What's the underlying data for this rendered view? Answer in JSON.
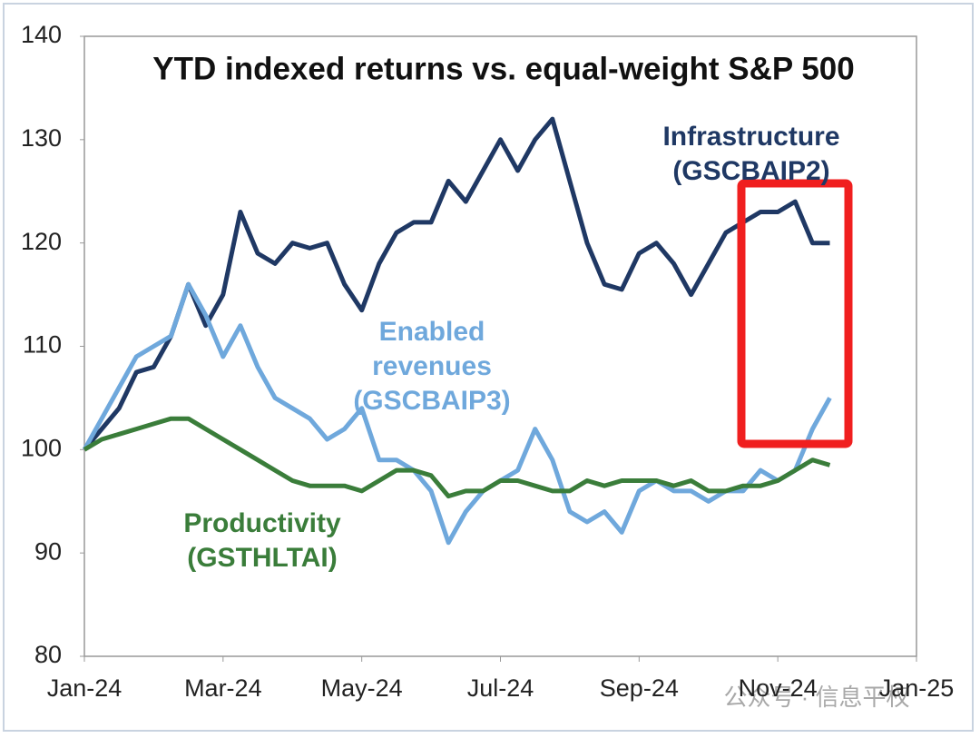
{
  "chart_data": {
    "type": "line",
    "title": "YTD indexed returns vs. equal-weight S&P 500",
    "x": [
      0,
      0.25,
      0.5,
      0.75,
      1,
      1.25,
      1.5,
      1.75,
      2,
      2.25,
      2.5,
      2.75,
      3,
      3.25,
      3.5,
      3.75,
      4,
      4.25,
      4.5,
      4.75,
      5,
      5.25,
      5.5,
      5.75,
      6,
      6.25,
      6.5,
      6.75,
      7,
      7.25,
      7.5,
      7.75,
      8,
      8.25,
      8.5,
      8.75,
      9,
      9.25,
      9.5,
      9.75,
      10,
      10.25,
      10.5,
      10.75
    ],
    "series": [
      {
        "name": "Infrastructure (GSCBAIP2)",
        "color": "#1f3864",
        "values": [
          100,
          102,
          104,
          107.5,
          108,
          111,
          116,
          112,
          115,
          123,
          119,
          118,
          120,
          119.5,
          120,
          116,
          113.5,
          118,
          121,
          122,
          122,
          126,
          124,
          127,
          130,
          127,
          130,
          132,
          126,
          120,
          116,
          115.5,
          119,
          120,
          118,
          115,
          118,
          121,
          122,
          123,
          123,
          124,
          120,
          120
        ]
      },
      {
        "name": "Enabled revenues (GSCBAIP3)",
        "color": "#6fa8dc",
        "values": [
          100,
          103,
          106,
          109,
          110,
          111,
          116,
          113,
          109,
          112,
          108,
          105,
          104,
          103,
          101,
          102,
          104,
          99,
          99,
          98,
          96,
          91,
          94,
          96,
          97,
          98,
          102,
          99,
          94,
          93,
          94,
          92,
          96,
          97,
          96,
          96,
          95,
          96,
          96,
          98,
          97,
          98,
          102,
          105
        ]
      },
      {
        "name": "Productivity (GSTHLTAI)",
        "color": "#3a7d3a",
        "values": [
          100,
          101,
          101.5,
          102,
          102.5,
          103,
          103,
          102,
          101,
          100,
          99,
          98,
          97,
          96.5,
          96.5,
          96.5,
          96,
          97,
          98,
          98,
          97.5,
          95.5,
          96,
          96,
          97,
          97,
          96.5,
          96,
          96,
          97,
          96.5,
          97,
          97,
          97,
          96.5,
          97,
          96,
          96,
          96.5,
          96.5,
          97,
          98,
          99,
          98.5
        ]
      }
    ],
    "xlim": [
      0,
      12
    ],
    "xticks": [
      {
        "value": 0,
        "label": "Jan-24"
      },
      {
        "value": 2,
        "label": "Mar-24"
      },
      {
        "value": 4,
        "label": "May-24"
      },
      {
        "value": 6,
        "label": "Jul-24"
      },
      {
        "value": 8,
        "label": "Sep-24"
      },
      {
        "value": 10,
        "label": "Nov-24"
      },
      {
        "value": 12,
        "label": "Jan-25"
      }
    ],
    "ylim": [
      80,
      140
    ],
    "yticks": [
      80,
      90,
      100,
      110,
      120,
      130,
      140
    ],
    "grid": false,
    "watermark": "公众号 · 信息平权"
  }
}
